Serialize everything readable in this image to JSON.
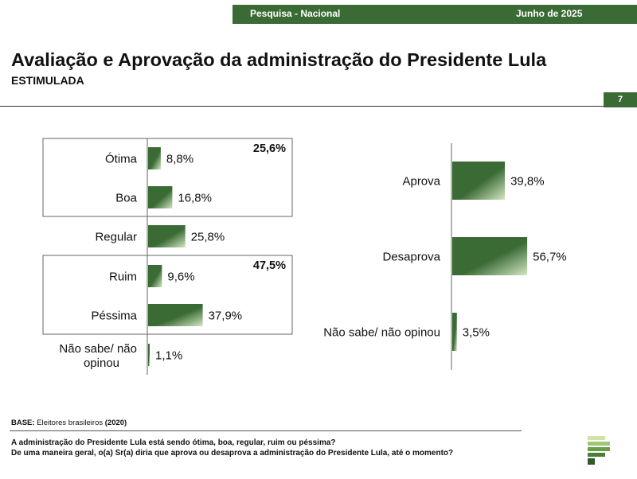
{
  "header": {
    "survey": "Pesquisa - Nacional",
    "date": "Junho de 2025"
  },
  "title": "Avaliação e Aprovação da administração do Presidente Lula",
  "subtitle": "ESTIMULADA",
  "page_number": "7",
  "chart_data": [
    {
      "type": "bar",
      "orientation": "horizontal",
      "categories": [
        "Ótima",
        "Boa",
        "Regular",
        "Ruim",
        "Péssima",
        "Não sabe/ não opinou"
      ],
      "values": [
        8.8,
        16.8,
        25.8,
        9.6,
        37.9,
        1.1
      ],
      "value_labels": [
        "8,8%",
        "16,8%",
        "25,8%",
        "9,6%",
        "37,9%",
        "1,1%"
      ],
      "unit": "%",
      "groups": [
        {
          "label": "25,6%",
          "categories": [
            "Ótima",
            "Boa"
          ]
        },
        {
          "label": "47,5%",
          "categories": [
            "Ruim",
            "Péssima"
          ]
        }
      ],
      "bar_color": "#3b6b35"
    },
    {
      "type": "bar",
      "orientation": "horizontal",
      "categories": [
        "Aprova",
        "Desaprova",
        "Não sabe/ não opinou"
      ],
      "values": [
        39.8,
        56.7,
        3.5
      ],
      "value_labels": [
        "39,8%",
        "56,7%",
        "3,5%"
      ],
      "unit": "%",
      "bar_color": "#3b6b35"
    }
  ],
  "footer": {
    "base_label": "BASE:",
    "base_text": "Eleitores brasileiros",
    "base_n": "(2020)",
    "question1": "A administração do Presidente Lula está sendo ótima, boa, regular, ruim ou péssima?",
    "question2": "De uma maneira geral, o(a) Sr(a) diria que aprova ou desaprova a administração do Presidente Lula, até o momento?"
  },
  "colors": {
    "accent": "#3b6b35",
    "logo_light": "#cfe3a8"
  },
  "logo_icon": "brand-logo-icon"
}
